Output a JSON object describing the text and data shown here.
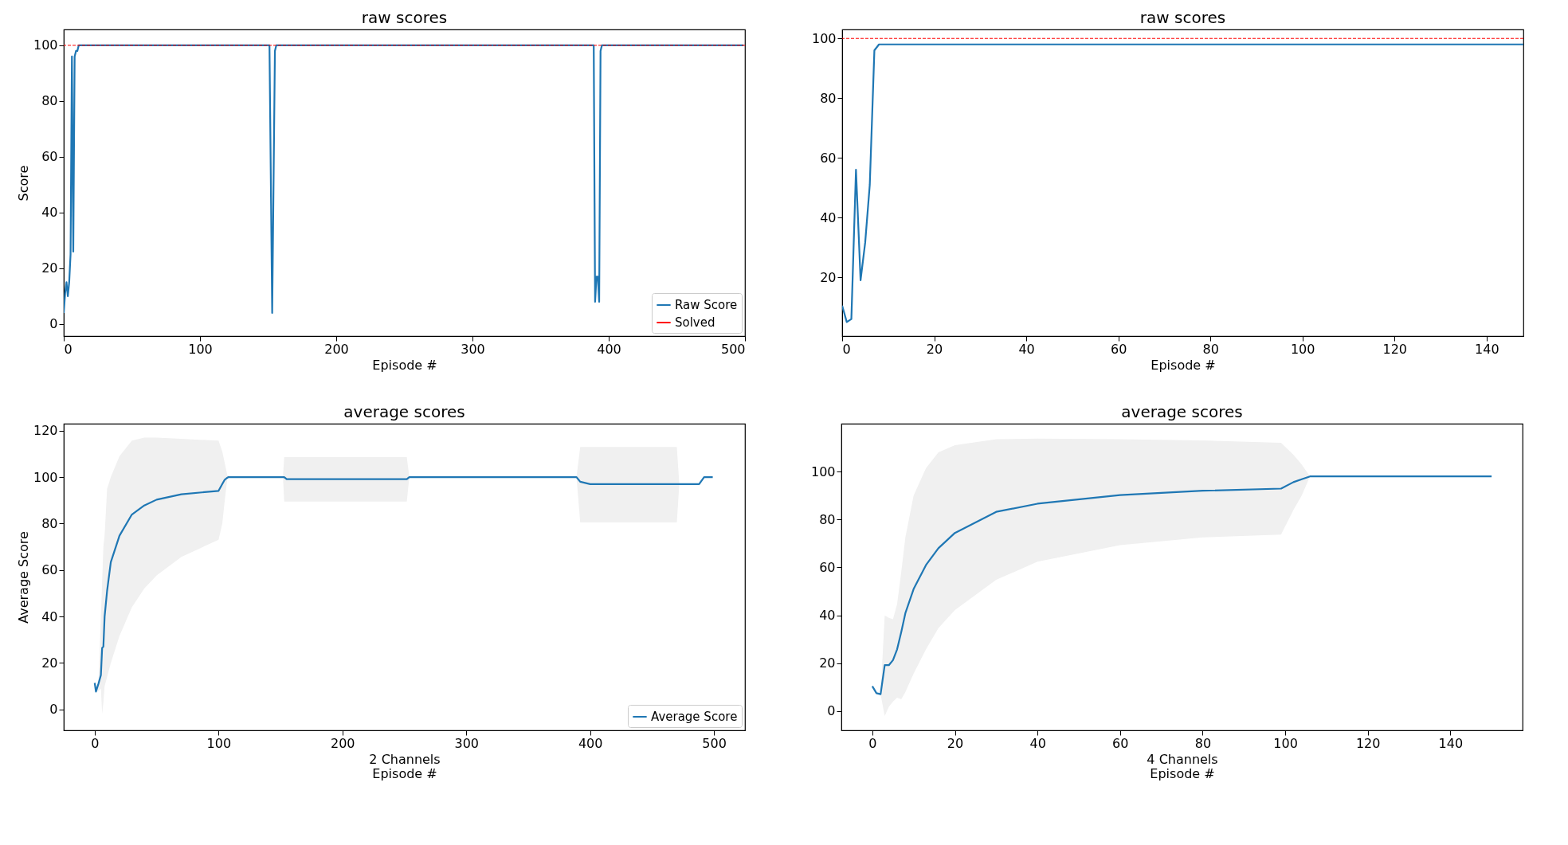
{
  "chart_data": [
    {
      "type": "line",
      "title": "raw scores",
      "xlabel": "Episode #",
      "ylabel": "Score",
      "xlim": [
        0,
        500
      ],
      "ylim": [
        -4.3,
        105.7
      ],
      "xticks": [
        0,
        100,
        200,
        300,
        400,
        500
      ],
      "yticks": [
        0,
        20,
        40,
        60,
        80,
        100
      ],
      "legend": "bottom right",
      "series": [
        {
          "name": "Raw Score",
          "color": "#1f77b4",
          "x": [
            0,
            1,
            2,
            3,
            4,
            5,
            6,
            7,
            8,
            9,
            10,
            11,
            151,
            153,
            155,
            156,
            389,
            390,
            391,
            392,
            393,
            394,
            395,
            499
          ],
          "values": [
            4,
            11,
            15,
            10,
            15,
            25,
            96,
            26,
            96,
            98,
            98,
            100,
            100,
            4,
            98,
            100,
            100,
            8,
            17,
            17,
            8,
            98,
            100,
            100
          ]
        }
      ],
      "ref_lines": [
        {
          "axis": "y",
          "value": 100,
          "label": "Solved",
          "color": "#ff0000",
          "line_style": "dashed"
        }
      ]
    },
    {
      "type": "line",
      "title": "raw scores",
      "xlabel": "Episode #",
      "xlim": [
        0,
        148
      ],
      "ylim": [
        0.3,
        103
      ],
      "xticks": [
        0,
        20,
        40,
        60,
        80,
        100,
        120,
        140
      ],
      "yticks": [
        20,
        40,
        60,
        80,
        100
      ],
      "series": [
        {
          "color": "#1f77b4",
          "x": [
            0,
            1,
            2,
            3,
            4,
            5,
            6,
            7,
            8,
            148
          ],
          "values": [
            10.5,
            5,
            6,
            56,
            19,
            31.6,
            51,
            96,
            98,
            98
          ]
        }
      ],
      "ref_lines": [
        {
          "axis": "y",
          "value": 100,
          "color": "#ff0000",
          "line_style": "dashed"
        }
      ]
    },
    {
      "type": "line",
      "title": "average scores",
      "xlabel": "2 Channels\nEpisode #",
      "ylabel": "Average Score",
      "xlim": [
        -25,
        525
      ],
      "ylim": [
        -9,
        123
      ],
      "xticks": [
        0,
        100,
        200,
        300,
        400,
        500
      ],
      "yticks": [
        0,
        20,
        40,
        60,
        80,
        100,
        120
      ],
      "legend": "bottom right",
      "series": [
        {
          "name": "Average Score",
          "color": "#1f77b4",
          "x": [
            0,
            1,
            3,
            5,
            6,
            7,
            8,
            10,
            13,
            20,
            30,
            40,
            50,
            70,
            100,
            103,
            105,
            107,
            108,
            152,
            153,
            155,
            252,
            254,
            389,
            392,
            400,
            470,
            472,
            488,
            492,
            499
          ],
          "values": [
            11.4,
            7.7,
            11,
            14.8,
            26.5,
            27,
            40,
            51,
            63.4,
            74.8,
            83.9,
            87.8,
            90.3,
            92.6,
            94.1,
            97,
            98.9,
            99.7,
            100,
            100,
            100,
            99.1,
            99.1,
            100,
            100,
            98,
            97,
            97,
            97,
            97,
            100,
            100
          ],
          "lower": [
            11.4,
            7.7,
            8,
            9,
            -2,
            3,
            10,
            14,
            20,
            31.6,
            44,
            52,
            57.7,
            65.7,
            73,
            80,
            90,
            99,
            100,
            100,
            89.5,
            89.5,
            89.5,
            100,
            100,
            80.5,
            80.5,
            80.5,
            97,
            97,
            100,
            100
          ],
          "upper": [
            11.4,
            7.7,
            11,
            40,
            55,
            70,
            75,
            95,
            100,
            109,
            115.7,
            117,
            117,
            116.5,
            115.7,
            111,
            106,
            101,
            100,
            100,
            108.6,
            108.6,
            108.6,
            100,
            100,
            113,
            113,
            113,
            97,
            97,
            100,
            100
          ]
        }
      ]
    },
    {
      "type": "line",
      "title": "average scores",
      "xlabel": "4 Channels\nEpisode #",
      "xlim": [
        -7.5,
        157.5
      ],
      "ylim": [
        -8,
        120
      ],
      "xticks": [
        0,
        20,
        40,
        60,
        80,
        100,
        120,
        140
      ],
      "yticks": [
        0,
        20,
        40,
        60,
        80,
        100
      ],
      "series": [
        {
          "color": "#1f77b4",
          "x": [
            0,
            1,
            2,
            3,
            4,
            5,
            6,
            7,
            8,
            10,
            13,
            16,
            20,
            30,
            40,
            60,
            80,
            99,
            102,
            104,
            106,
            150
          ],
          "values": [
            10.4,
            7.5,
            7.1,
            19.2,
            19.2,
            21.3,
            25.8,
            33,
            40.9,
            51,
            61,
            68,
            74.4,
            83.2,
            86.6,
            90.2,
            92,
            92.9,
            95.6,
            96.8,
            98,
            98
          ],
          "lower": [
            10.4,
            7.5,
            7.1,
            -2,
            1.8,
            4,
            5.6,
            5,
            8,
            15.7,
            25.8,
            34.6,
            42.2,
            54.8,
            62.4,
            69.3,
            72.5,
            73.7,
            84,
            90,
            98,
            98
          ],
          "upper": [
            10.4,
            7.5,
            7.1,
            40,
            39,
            38.4,
            44.7,
            58,
            72.5,
            90,
            101.5,
            108,
            111,
            113.5,
            113.8,
            113.5,
            113,
            112,
            107,
            103,
            98,
            98
          ]
        }
      ]
    }
  ]
}
